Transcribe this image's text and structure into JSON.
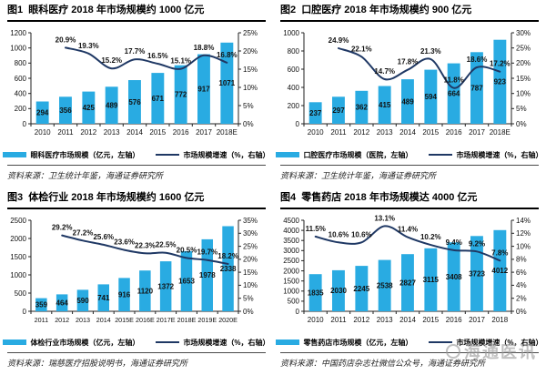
{
  "colors": {
    "bar": "#29abe2",
    "line": "#1f3864",
    "axis": "#222222",
    "label": "#111111",
    "watermark": "#9a9a9a"
  },
  "watermark": {
    "text": "海通医讯"
  },
  "chart_data": [
    {
      "figure": "图1",
      "type": "bar+line",
      "title": "图1  眼科医疗 2018 年市场规模约 1000 亿元",
      "categories": [
        "2010",
        "2011",
        "2012",
        "2013",
        "2014",
        "2015",
        "2016",
        "2017",
        "2018E"
      ],
      "bar_series": {
        "name": "眼科医疗市场规模（亿元，左轴）",
        "values": [
          294,
          356,
          425,
          489,
          576,
          671,
          772,
          917,
          1071
        ]
      },
      "line_series": {
        "name": "市场规模增速（%，右轴）",
        "values": [
          null,
          20.9,
          19.3,
          15.2,
          17.7,
          16.5,
          15.1,
          18.8,
          16.8
        ]
      },
      "left_axis": {
        "min": 0,
        "max": 1200,
        "step": 200
      },
      "right_axis": {
        "min": 0,
        "max": 25,
        "step": 5,
        "suffix": "%"
      },
      "legend_position": "bottom",
      "grid": false,
      "source": "资料来源：卫生统计年鉴，海通证券研究所"
    },
    {
      "figure": "图2",
      "type": "bar+line",
      "title": "图2  口腔医疗 2018 年市场规模约 900 亿元",
      "categories": [
        "2010",
        "2011",
        "2012",
        "2013",
        "2014",
        "2015",
        "2016",
        "2017",
        "2018E"
      ],
      "bar_series": {
        "name": "口腔医疗市场规模（医院，左轴）",
        "values": [
          237,
          297,
          362,
          415,
          489,
          594,
          664,
          787,
          923
        ]
      },
      "line_series": {
        "name": "市场规模增速（%，右轴）",
        "values": [
          null,
          24.9,
          22.1,
          14.7,
          17.8,
          21.3,
          11.8,
          18.6,
          17.2
        ]
      },
      "left_axis": {
        "min": 0,
        "max": 1000,
        "step": 200
      },
      "right_axis": {
        "min": 0,
        "max": 30,
        "step": 5,
        "suffix": "%"
      },
      "legend_position": "bottom",
      "grid": false,
      "source": "资料来源：卫生统计年鉴，海通证券研究所"
    },
    {
      "figure": "图3",
      "type": "bar+line",
      "title": "图3  体检行业 2018 年市场规模约 1600 亿元",
      "categories": [
        "2011",
        "2012",
        "2013",
        "2014",
        "2015E",
        "2016E",
        "2017E",
        "2018E",
        "2019E",
        "2020E"
      ],
      "bar_series": {
        "name": "体检行业市场规模（亿元，左轴）",
        "values": [
          359,
          464,
          590,
          741,
          916,
          1120,
          1372,
          1653,
          1978,
          2338
        ]
      },
      "line_series": {
        "name": "市场规模增速（%，右轴）",
        "values": [
          null,
          29.2,
          27.2,
          25.6,
          23.6,
          22.3,
          22.5,
          20.5,
          19.7,
          18.2
        ]
      },
      "left_axis": {
        "min": 0,
        "max": 2500,
        "step": 500
      },
      "right_axis": {
        "min": 0,
        "max": 35,
        "step": 5,
        "suffix": "%"
      },
      "legend_position": "bottom",
      "grid": false,
      "source": "资料来源：瑞慈医疗招股说明书，海通证券研究所"
    },
    {
      "figure": "图4",
      "type": "bar+line",
      "title": "图4  零售药店 2018 年市场规模达 4000 亿元",
      "categories": [
        "2010",
        "2011",
        "2012",
        "2013",
        "2014",
        "2015",
        "2016",
        "2017",
        "2018"
      ],
      "bar_series": {
        "name": "零售药店市场规模（亿元，左轴）",
        "values": [
          1835,
          2030,
          2245,
          2538,
          2827,
          3115,
          3408,
          3723,
          4012
        ]
      },
      "line_series": {
        "name": "市场规模增速（%，右轴）",
        "values": [
          11.5,
          10.6,
          10.6,
          13.1,
          11.4,
          10.2,
          9.4,
          9.2,
          7.8
        ]
      },
      "left_axis": {
        "min": 0,
        "max": 4500,
        "step": 500
      },
      "right_axis": {
        "min": 0,
        "max": 14,
        "step": 2,
        "suffix": "%"
      },
      "legend_position": "bottom",
      "grid": false,
      "source": "资料来源：中国药店杂志社微信公众号，海通证券研究所"
    }
  ]
}
